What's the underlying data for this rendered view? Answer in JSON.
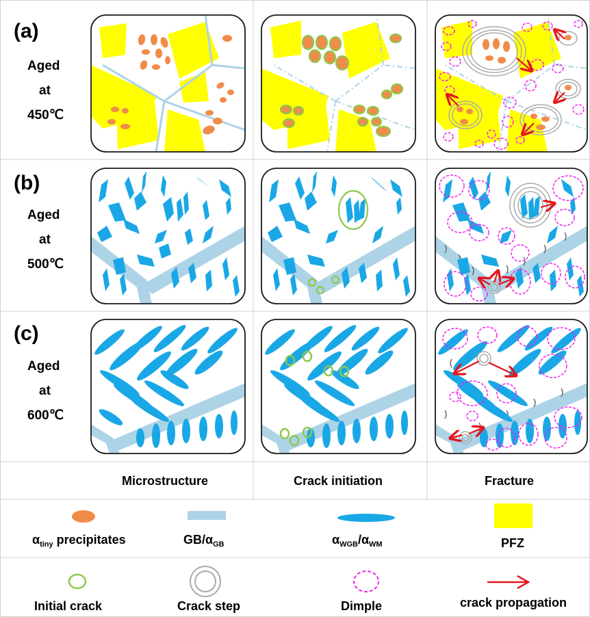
{
  "rows": [
    {
      "label": "(a)",
      "line1": "Aged",
      "line2": "at",
      "line3": "450℃"
    },
    {
      "label": "(b)",
      "line1": "Aged",
      "line2": "at",
      "line3": "500℃"
    },
    {
      "label": "(c)",
      "line1": "Aged",
      "line2": "at",
      "line3": "600℃"
    }
  ],
  "columns": [
    "Microstructure",
    "Crack initiation",
    "Fracture"
  ],
  "legend": {
    "precipitates": {
      "main": "α",
      "sub": "tiny",
      "rest": " precipitates"
    },
    "gb": {
      "main": "GB/α",
      "sub": "GB"
    },
    "awgb": {
      "a1": "α",
      "s1": "WGB",
      "mid": "/α",
      "s2": "WM"
    },
    "pfz": "PFZ",
    "initial_crack": "Initial crack",
    "crack_step": "Crack step",
    "dimple": "Dimple",
    "crack_propagation": "crack propagation"
  },
  "colors": {
    "precipitate": "#f08c4a",
    "grain_boundary": "#add3e6",
    "alpha": "#1aa7e6",
    "pfz": "#ffff00",
    "initial_crack": "#8cc84b",
    "crack_step": "#aaaaaa",
    "dimple": "#ee22ee",
    "arrow": "#e3141b"
  }
}
